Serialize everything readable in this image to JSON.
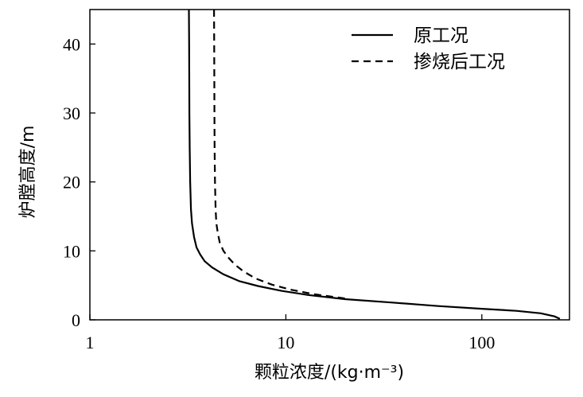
{
  "chart_data": {
    "type": "line",
    "title": "",
    "xlabel": "颗粒浓度/(kg·m⁻³)",
    "ylabel": "炉膛高度/m",
    "xscale": "log",
    "xlim": [
      1,
      280
    ],
    "ylim": [
      0,
      45
    ],
    "xticks": [
      1,
      10,
      100
    ],
    "xtick_labels": [
      "1",
      "10",
      "100"
    ],
    "yticks": [
      0,
      10,
      20,
      30,
      40
    ],
    "ytick_labels": [
      "0",
      "10",
      "20",
      "30",
      "40"
    ],
    "grid": false,
    "legend_position": "top-right",
    "series": [
      {
        "name": "原工况",
        "style": "solid",
        "color": "#000000",
        "points": [
          [
            3.2,
            45
          ],
          [
            3.21,
            40
          ],
          [
            3.22,
            30
          ],
          [
            3.23,
            25
          ],
          [
            3.25,
            20
          ],
          [
            3.28,
            16
          ],
          [
            3.32,
            14
          ],
          [
            3.4,
            12
          ],
          [
            3.5,
            10.5
          ],
          [
            3.65,
            9.5
          ],
          [
            3.85,
            8.5
          ],
          [
            4.2,
            7.6
          ],
          [
            4.8,
            6.6
          ],
          [
            5.8,
            5.6
          ],
          [
            7.2,
            4.9
          ],
          [
            9.5,
            4.2
          ],
          [
            13,
            3.6
          ],
          [
            20,
            3.0
          ],
          [
            35,
            2.5
          ],
          [
            60,
            2.0
          ],
          [
            100,
            1.6
          ],
          [
            150,
            1.3
          ],
          [
            200,
            0.95
          ],
          [
            235,
            0.5
          ],
          [
            250,
            0.15
          ]
        ]
      },
      {
        "name": "掺烧后工况",
        "style": "dashed",
        "color": "#000000",
        "points": [
          [
            4.3,
            45
          ],
          [
            4.31,
            40
          ],
          [
            4.32,
            30
          ],
          [
            4.33,
            25
          ],
          [
            4.35,
            20
          ],
          [
            4.38,
            16
          ],
          [
            4.42,
            14
          ],
          [
            4.5,
            12.5
          ],
          [
            4.6,
            11.2
          ],
          [
            4.8,
            10
          ],
          [
            5.1,
            9
          ],
          [
            5.5,
            8
          ],
          [
            6.1,
            7
          ],
          [
            7.0,
            6
          ],
          [
            8.5,
            5.1
          ],
          [
            10.5,
            4.4
          ],
          [
            14,
            3.7
          ],
          [
            20,
            3.1
          ]
        ]
      }
    ]
  }
}
